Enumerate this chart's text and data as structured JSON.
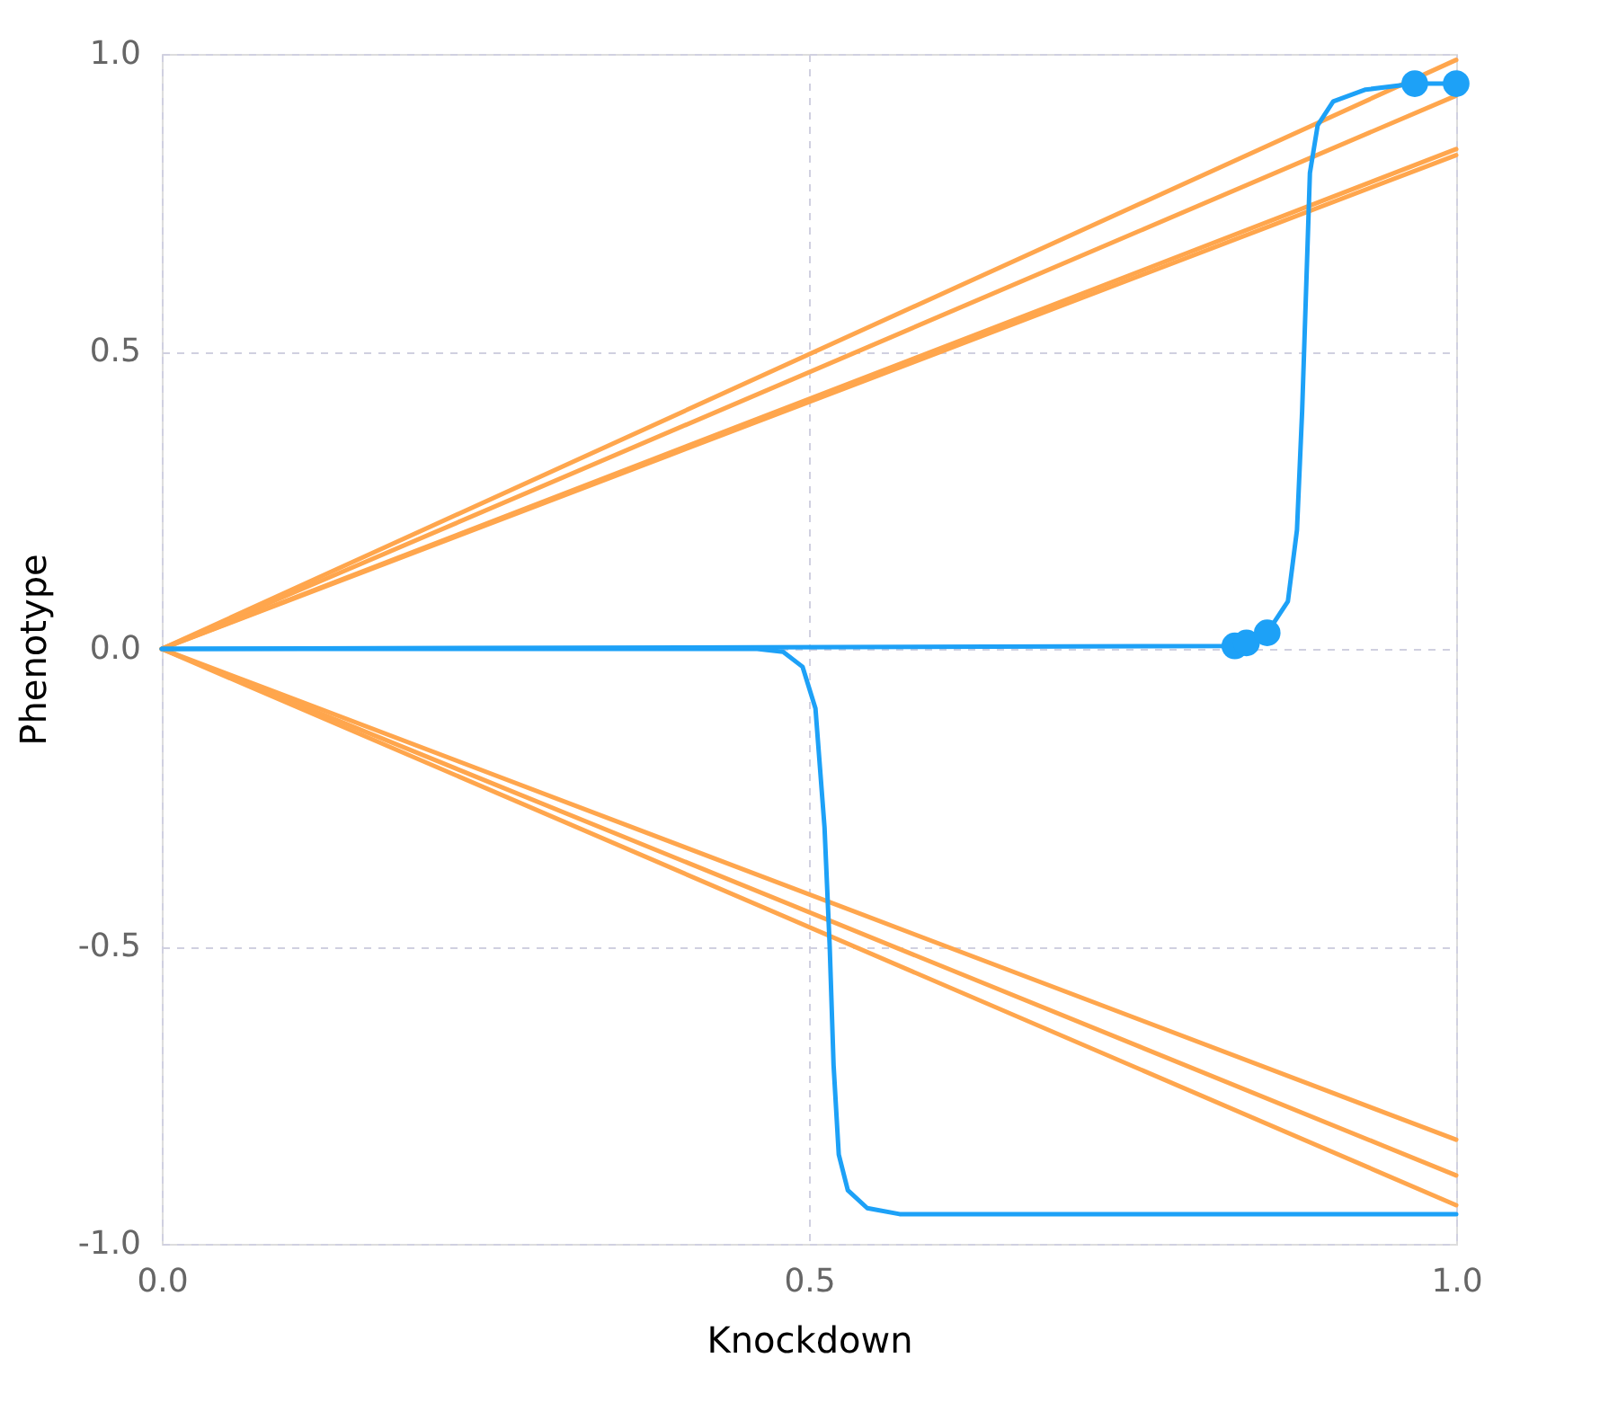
{
  "chart_data": {
    "type": "line",
    "xlabel": "Knockdown",
    "ylabel": "Phenotype",
    "xlim": [
      0,
      1
    ],
    "ylim": [
      -1,
      1
    ],
    "xticks": [
      {
        "value": 0,
        "label": "0.0"
      },
      {
        "value": 0.5,
        "label": "0.5"
      },
      {
        "value": 1,
        "label": "1.0"
      }
    ],
    "yticks": [
      {
        "value": -1,
        "label": "-1.0"
      },
      {
        "value": -0.5,
        "label": "-0.5"
      },
      {
        "value": 0,
        "label": "0.0"
      },
      {
        "value": 0.5,
        "label": "0.5"
      },
      {
        "value": 1,
        "label": "1.0"
      }
    ],
    "grid": true,
    "legend": false,
    "marker": "none",
    "line_style": "solid",
    "series": [
      {
        "color": "#ffa64d",
        "x": [
          0,
          1
        ],
        "values": [
          0,
          0.99
        ]
      },
      {
        "color": "#ffa64d",
        "x": [
          0,
          1
        ],
        "values": [
          0,
          0.93
        ]
      },
      {
        "color": "#ffa64d",
        "x": [
          0,
          1
        ],
        "values": [
          0,
          0.84
        ]
      },
      {
        "color": "#ffa64d",
        "x": [
          0,
          1
        ],
        "values": [
          0,
          0.83
        ]
      },
      {
        "color": "#ffa64d",
        "x": [
          0,
          1
        ],
        "values": [
          0,
          -0.825
        ]
      },
      {
        "color": "#ffa64d",
        "x": [
          0,
          1
        ],
        "values": [
          0,
          -0.885
        ]
      },
      {
        "color": "#ffa64d",
        "x": [
          0,
          1
        ],
        "values": [
          0,
          -0.935
        ]
      },
      {
        "color": "#1da1f7",
        "x": [
          0,
          0.46,
          0.48,
          0.495,
          0.505,
          0.512,
          0.516,
          0.519,
          0.523,
          0.53,
          0.545,
          0.57,
          1
        ],
        "values": [
          0,
          0,
          -0.005,
          -0.03,
          -0.1,
          -0.3,
          -0.5,
          -0.7,
          -0.85,
          -0.91,
          -0.94,
          -0.95,
          -0.95
        ]
      },
      {
        "color": "#1da1f7",
        "x": [
          0,
          0.829,
          0.838,
          0.854,
          0.87,
          0.877,
          0.881,
          0.884,
          0.887,
          0.893,
          0.905,
          0.93,
          0.968,
          1
        ],
        "values": [
          0,
          0.005,
          0.01,
          0.027,
          0.08,
          0.2,
          0.4,
          0.6,
          0.8,
          0.88,
          0.92,
          0.94,
          0.95,
          0.95
        ]
      },
      {
        "type": "scatter",
        "marker": "circle",
        "color": "#1da1f7",
        "x": [
          0.829,
          0.838,
          0.854,
          0.968,
          1
        ],
        "values": [
          0.005,
          0.01,
          0.027,
          0.95,
          0.95
        ]
      }
    ]
  }
}
